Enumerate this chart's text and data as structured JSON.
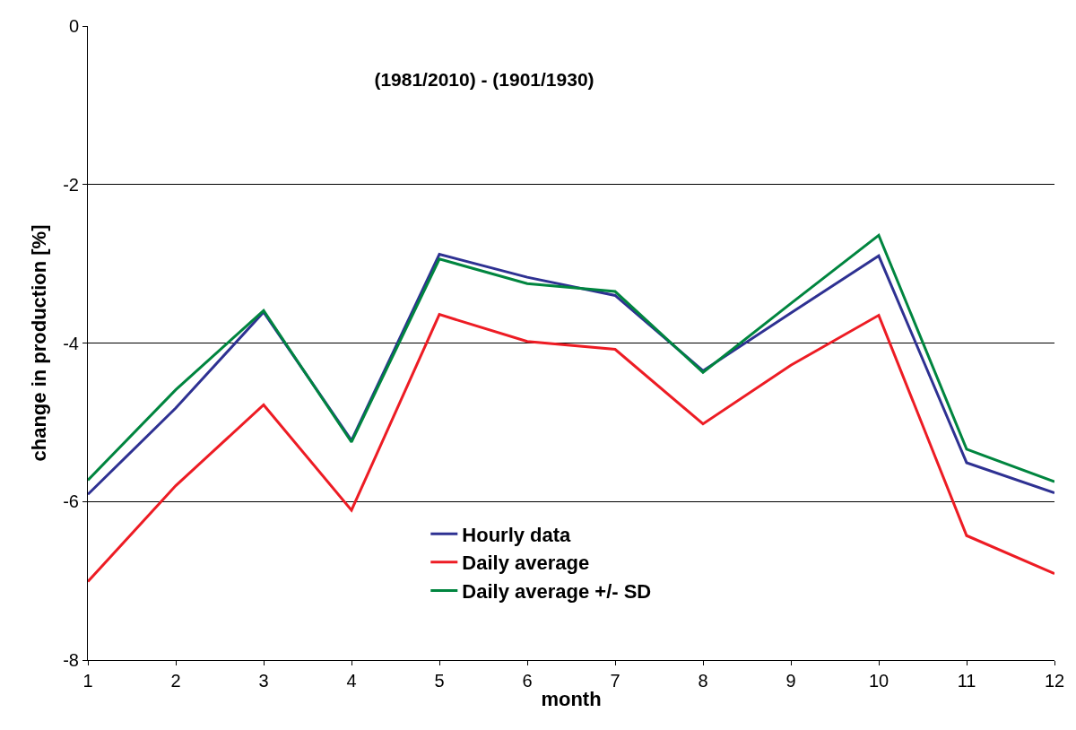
{
  "chart_data": {
    "type": "line",
    "title": "(1981/2010) - (1901/1930)",
    "xlabel": "month",
    "ylabel": "change in production [%]",
    "x": [
      1,
      2,
      3,
      4,
      5,
      6,
      7,
      8,
      9,
      10,
      11,
      12
    ],
    "series": [
      {
        "name": "Hourly data",
        "color": "#2e3192",
        "values": [
          -5.91,
          -4.82,
          -3.61,
          -5.23,
          -2.88,
          -3.17,
          -3.4,
          -4.35,
          -3.62,
          -2.9,
          -5.51,
          -5.89
        ]
      },
      {
        "name": "Daily average",
        "color": "#ed1c24",
        "values": [
          -7.01,
          -5.8,
          -4.78,
          -6.11,
          -3.64,
          -3.98,
          -4.08,
          -5.02,
          -4.28,
          -3.65,
          -6.43,
          -6.91
        ]
      },
      {
        "name": "Daily average +/- SD",
        "color": "#00853f",
        "values": [
          -5.73,
          -4.59,
          -3.59,
          -5.25,
          -2.94,
          -3.25,
          -3.35,
          -4.37,
          -3.5,
          -2.64,
          -5.34,
          -5.75
        ]
      }
    ],
    "xlim": [
      1,
      12
    ],
    "xticks": [
      1,
      2,
      3,
      4,
      5,
      6,
      7,
      8,
      9,
      10,
      11,
      12
    ],
    "ylim": [
      -8,
      0
    ],
    "yticks": [
      -8,
      -6,
      -4,
      -2,
      0
    ],
    "grid": "y",
    "legend": "bottom",
    "marker": "none",
    "line_style": "solid"
  }
}
